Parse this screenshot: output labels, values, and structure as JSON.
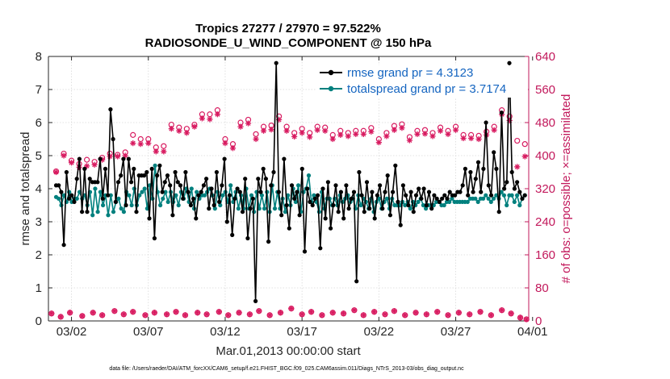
{
  "chart_data": {
    "type": "line",
    "title_line1": "Tropics 27277 / 27970 = 97.522%",
    "title_line2": "RADIOSONDE_U_WIND_COMPONENT @ 150 hPa",
    "xlabel": "Mar.01,2013 00:00:00 start",
    "ylabel_left": "rmse and totalspread",
    "ylabel_right": "# of obs: o=possible; ×=assimilated",
    "footer": "data file: /Users/raeder/DAI/ATM_forcXX/CAM6_setup/f.e21.FHIST_BGC.f09_025.CAM6assim.011/Diags_NTrS_2013-03/obs_diag_output.nc",
    "x_range": [
      0.5,
      31.75
    ],
    "ylim_left": [
      0,
      8
    ],
    "ylim_right": [
      0,
      640
    ],
    "left_ticks": [
      "0",
      "1",
      "2",
      "3",
      "4",
      "5",
      "6",
      "7",
      "8"
    ],
    "right_ticks": [
      "0",
      "80",
      "160",
      "240",
      "320",
      "400",
      "480",
      "560",
      "640"
    ],
    "x_tick_positions": [
      2,
      7,
      12,
      17,
      22,
      27,
      32
    ],
    "x_tick_labels": [
      "03/02",
      "03/07",
      "03/12",
      "03/17",
      "03/22",
      "03/27",
      "04/01"
    ],
    "colors": {
      "rmse": "#000000",
      "spread": "#00807e",
      "obs": "#d81b60",
      "legend_text": "#1565c0"
    },
    "series": [
      {
        "name": "rmse grand pr = 4.3123",
        "values": [
          4.1,
          4.1,
          3.9,
          2.3,
          4.5,
          3.7,
          3.8,
          3.6,
          4.3,
          4.9,
          3.3,
          4.6,
          3.3,
          4.3,
          4.2,
          4.2,
          4.2,
          4.9,
          3.7,
          4.6,
          3.8,
          6.4,
          5.5,
          3.6,
          4.2,
          4.4,
          4.9,
          3.5,
          4.9,
          4.2,
          4.6,
          3.3,
          4.4,
          4.4,
          4.4,
          4.5,
          3.1,
          4.6,
          2.5,
          4.4,
          4.7,
          3.9,
          4.2,
          4.4,
          4.1,
          3.2,
          4.5,
          4.2,
          4.1,
          3.7,
          4.5,
          3.9,
          3.5,
          3.7,
          3.1,
          3.8,
          3.9,
          4.1,
          4.3,
          3.4,
          4.0,
          3.5,
          4.5,
          3.6,
          4.1,
          4.9,
          3.0,
          3.8,
          2.6,
          3.7,
          4.0,
          3.9,
          3.3,
          4.3,
          2.5,
          3.4,
          3.7,
          0.6,
          4.3,
          3.9,
          4.6,
          4.3,
          2.4,
          4.1,
          4.5,
          7.8,
          3.9,
          3.2,
          4.9,
          3.5,
          2.8,
          4.1,
          3.7,
          3.9,
          3.2,
          4.6,
          2.1,
          4.0,
          3.6,
          3.5,
          3.7,
          3.8,
          2.2,
          4.0,
          3.1,
          4.2,
          2.8,
          3.5,
          4.1,
          3.3,
          3.9,
          3.1,
          4.1,
          3.4,
          3.7,
          3.9,
          1.2,
          4.5,
          3.8,
          3.3,
          4.2,
          3.4,
          3.9,
          3.1,
          3.8,
          4.1,
          3.4,
          3.9,
          4.4,
          3.2,
          3.9,
          4.7,
          3.6,
          2.9,
          4.1,
          3.8,
          3.5,
          3.9,
          3.3,
          3.8,
          4.0,
          3.7,
          4.0,
          3.5,
          3.9,
          3.4,
          3.8,
          3.7,
          3.6,
          3.7,
          3.8,
          3.7,
          3.9,
          3.8,
          3.8,
          3.9,
          3.9,
          4.1,
          4.6,
          3.8,
          4.5,
          3.9,
          4.3,
          4.8,
          3.9,
          4.6,
          6.0,
          4.1,
          3.8,
          5.1,
          4.6,
          3.3,
          6.3,
          4.0,
          4.2,
          7.8,
          4.5,
          4.0,
          4.2,
          3.9,
          3.7,
          3.8
        ]
      },
      {
        "name": "totalspread grand pr = 3.7174",
        "values": [
          3.75,
          3.7,
          3.5,
          3.8,
          3.6,
          3.9,
          3.6,
          3.7,
          3.7,
          3.9,
          3.7,
          3.8,
          3.5,
          3.9,
          3.2,
          4.0,
          3.3,
          3.9,
          3.5,
          3.8,
          3.2,
          3.8,
          3.3,
          3.6,
          3.7,
          3.4,
          3.3,
          3.9,
          3.8,
          3.5,
          4.0,
          3.5,
          3.8,
          3.9,
          4.0,
          3.4,
          4.1,
          3.7,
          4.7,
          3.9,
          3.5,
          3.7,
          3.9,
          3.6,
          3.9,
          3.6,
          3.8,
          3.5,
          3.9,
          3.7,
          4.0,
          3.6,
          4.0,
          3.4,
          3.9,
          3.7,
          3.8,
          3.8,
          3.9,
          4.0,
          3.8,
          3.4,
          3.9,
          3.5,
          3.8,
          3.9,
          3.6,
          4.1,
          3.6,
          3.9,
          3.4,
          3.8,
          3.4,
          4.0,
          3.4,
          3.8,
          3.3,
          3.9,
          3.4,
          3.8,
          3.4,
          3.9,
          3.3,
          4.1,
          3.4,
          3.9,
          3.4,
          3.7,
          3.3,
          3.8,
          3.5,
          4.0,
          3.6,
          4.1,
          3.3,
          3.9,
          4.0,
          4.4,
          3.6,
          3.8,
          3.6,
          3.3,
          3.9,
          3.4,
          3.7,
          3.7,
          3.5,
          3.7,
          3.5,
          3.8,
          3.6,
          3.7,
          3.8,
          3.6,
          3.7,
          3.4,
          3.8,
          3.5,
          3.7,
          3.6,
          3.4,
          3.7,
          3.3,
          3.6,
          3.7,
          3.4,
          3.6,
          3.7,
          3.4,
          3.7,
          3.5,
          3.5,
          3.5,
          3.6,
          3.5,
          3.6,
          3.4,
          3.6,
          3.5,
          3.6,
          3.7,
          3.5,
          3.4,
          3.5,
          3.5,
          3.5,
          3.6,
          3.6,
          3.5,
          3.5,
          3.6,
          3.6,
          3.7,
          3.6,
          3.6,
          3.6,
          3.6,
          3.6,
          3.6,
          3.7,
          3.7,
          3.7,
          3.6,
          3.7,
          3.7,
          3.8,
          3.7,
          3.6,
          3.7,
          3.8,
          3.7,
          3.9,
          3.8,
          3.5,
          3.8,
          3.8,
          3.6,
          3.8,
          3.5,
          3.7,
          3.8
        ]
      }
    ],
    "obs_possible": [
      {
        "x": 1.0,
        "y": 362
      },
      {
        "x": 1.5,
        "y": 405
      },
      {
        "x": 2.0,
        "y": 388
      },
      {
        "x": 2.5,
        "y": 380
      },
      {
        "x": 3.0,
        "y": 390
      },
      {
        "x": 3.5,
        "y": 385
      },
      {
        "x": 4.0,
        "y": 395
      },
      {
        "x": 4.5,
        "y": 405
      },
      {
        "x": 5.0,
        "y": 402
      },
      {
        "x": 5.5,
        "y": 408
      },
      {
        "x": 6.0,
        "y": 450
      },
      {
        "x": 6.5,
        "y": 440
      },
      {
        "x": 7.0,
        "y": 440
      },
      {
        "x": 7.5,
        "y": 420
      },
      {
        "x": 8.0,
        "y": 423
      },
      {
        "x": 8.5,
        "y": 475
      },
      {
        "x": 9.0,
        "y": 468
      },
      {
        "x": 9.5,
        "y": 465
      },
      {
        "x": 10.0,
        "y": 475
      },
      {
        "x": 10.5,
        "y": 500
      },
      {
        "x": 11.0,
        "y": 500
      },
      {
        "x": 11.5,
        "y": 510
      },
      {
        "x": 12.0,
        "y": 440
      },
      {
        "x": 12.5,
        "y": 428
      },
      {
        "x": 13.0,
        "y": 480
      },
      {
        "x": 13.5,
        "y": 487
      },
      {
        "x": 14.0,
        "y": 452
      },
      {
        "x": 14.5,
        "y": 470
      },
      {
        "x": 15.0,
        "y": 473
      },
      {
        "x": 15.5,
        "y": 495
      },
      {
        "x": 16.0,
        "y": 470
      },
      {
        "x": 16.5,
        "y": 455
      },
      {
        "x": 17.0,
        "y": 465
      },
      {
        "x": 17.5,
        "y": 455
      },
      {
        "x": 18.0,
        "y": 470
      },
      {
        "x": 18.5,
        "y": 468
      },
      {
        "x": 19.0,
        "y": 450
      },
      {
        "x": 19.5,
        "y": 460
      },
      {
        "x": 20.0,
        "y": 455
      },
      {
        "x": 20.5,
        "y": 460
      },
      {
        "x": 21.0,
        "y": 460
      },
      {
        "x": 21.5,
        "y": 467
      },
      {
        "x": 22.0,
        "y": 440
      },
      {
        "x": 22.5,
        "y": 455
      },
      {
        "x": 23.0,
        "y": 472
      },
      {
        "x": 23.5,
        "y": 476
      },
      {
        "x": 24.0,
        "y": 445
      },
      {
        "x": 24.5,
        "y": 460
      },
      {
        "x": 25.0,
        "y": 462
      },
      {
        "x": 25.5,
        "y": 455
      },
      {
        "x": 26.0,
        "y": 468
      },
      {
        "x": 26.5,
        "y": 460
      },
      {
        "x": 27.0,
        "y": 470
      },
      {
        "x": 27.5,
        "y": 450
      },
      {
        "x": 28.0,
        "y": 450
      },
      {
        "x": 28.5,
        "y": 448
      },
      {
        "x": 29.0,
        "y": 458
      },
      {
        "x": 29.5,
        "y": 470
      },
      {
        "x": 30.0,
        "y": 510
      },
      {
        "x": 30.5,
        "y": 495
      },
      {
        "x": 31.0,
        "y": 436
      },
      {
        "x": 31.5,
        "y": 428
      }
    ],
    "obs_assimilated": [
      {
        "x": 1.0,
        "y": 360
      },
      {
        "x": 1.5,
        "y": 400
      },
      {
        "x": 2.0,
        "y": 383
      },
      {
        "x": 2.5,
        "y": 372
      },
      {
        "x": 3.0,
        "y": 375
      },
      {
        "x": 3.5,
        "y": 378
      },
      {
        "x": 4.0,
        "y": 390
      },
      {
        "x": 4.5,
        "y": 398
      },
      {
        "x": 5.0,
        "y": 398
      },
      {
        "x": 5.5,
        "y": 400
      },
      {
        "x": 6.0,
        "y": 430
      },
      {
        "x": 6.5,
        "y": 428
      },
      {
        "x": 7.0,
        "y": 430
      },
      {
        "x": 7.5,
        "y": 410
      },
      {
        "x": 8.0,
        "y": 410
      },
      {
        "x": 8.5,
        "y": 465
      },
      {
        "x": 9.0,
        "y": 460
      },
      {
        "x": 9.5,
        "y": 455
      },
      {
        "x": 10.0,
        "y": 470
      },
      {
        "x": 10.5,
        "y": 490
      },
      {
        "x": 11.0,
        "y": 488
      },
      {
        "x": 11.5,
        "y": 500
      },
      {
        "x": 12.0,
        "y": 430
      },
      {
        "x": 12.5,
        "y": 418
      },
      {
        "x": 13.0,
        "y": 470
      },
      {
        "x": 13.5,
        "y": 478
      },
      {
        "x": 14.0,
        "y": 440
      },
      {
        "x": 14.5,
        "y": 460
      },
      {
        "x": 15.0,
        "y": 463
      },
      {
        "x": 15.5,
        "y": 487
      },
      {
        "x": 16.0,
        "y": 460
      },
      {
        "x": 16.5,
        "y": 446
      },
      {
        "x": 17.0,
        "y": 455
      },
      {
        "x": 17.5,
        "y": 445
      },
      {
        "x": 18.0,
        "y": 462
      },
      {
        "x": 18.5,
        "y": 460
      },
      {
        "x": 19.0,
        "y": 440
      },
      {
        "x": 19.5,
        "y": 450
      },
      {
        "x": 20.0,
        "y": 447
      },
      {
        "x": 20.5,
        "y": 452
      },
      {
        "x": 21.0,
        "y": 452
      },
      {
        "x": 21.5,
        "y": 458
      },
      {
        "x": 22.0,
        "y": 432
      },
      {
        "x": 22.5,
        "y": 447
      },
      {
        "x": 23.0,
        "y": 462
      },
      {
        "x": 23.5,
        "y": 467
      },
      {
        "x": 24.0,
        "y": 437
      },
      {
        "x": 24.5,
        "y": 452
      },
      {
        "x": 25.0,
        "y": 453
      },
      {
        "x": 25.5,
        "y": 447
      },
      {
        "x": 26.0,
        "y": 460
      },
      {
        "x": 26.5,
        "y": 452
      },
      {
        "x": 27.0,
        "y": 462
      },
      {
        "x": 27.5,
        "y": 442
      },
      {
        "x": 28.0,
        "y": 442
      },
      {
        "x": 28.5,
        "y": 440
      },
      {
        "x": 29.0,
        "y": 450
      },
      {
        "x": 29.5,
        "y": 462
      },
      {
        "x": 30.0,
        "y": 500
      },
      {
        "x": 30.5,
        "y": 485
      },
      {
        "x": 31.0,
        "y": 373
      },
      {
        "x": 31.5,
        "y": 398
      }
    ],
    "obs_bottom_possible": [
      {
        "x": 0.7,
        "y": 18
      },
      {
        "x": 1.3,
        "y": 10
      },
      {
        "x": 1.9,
        "y": 20
      },
      {
        "x": 2.7,
        "y": 12
      },
      {
        "x": 3.4,
        "y": 20
      },
      {
        "x": 4.0,
        "y": 14
      },
      {
        "x": 4.8,
        "y": 24
      },
      {
        "x": 5.4,
        "y": 16
      },
      {
        "x": 6.0,
        "y": 22
      },
      {
        "x": 6.8,
        "y": 14
      },
      {
        "x": 7.4,
        "y": 20
      },
      {
        "x": 8.2,
        "y": 16
      },
      {
        "x": 8.8,
        "y": 22
      },
      {
        "x": 9.4,
        "y": 14
      },
      {
        "x": 10.2,
        "y": 20
      },
      {
        "x": 10.8,
        "y": 16
      },
      {
        "x": 11.6,
        "y": 22
      },
      {
        "x": 12.2,
        "y": 14
      },
      {
        "x": 12.9,
        "y": 20
      },
      {
        "x": 13.6,
        "y": 16
      },
      {
        "x": 14.2,
        "y": 24
      },
      {
        "x": 14.9,
        "y": 14
      },
      {
        "x": 15.6,
        "y": 20
      },
      {
        "x": 16.3,
        "y": 30
      },
      {
        "x": 17.0,
        "y": 16
      },
      {
        "x": 17.6,
        "y": 22
      },
      {
        "x": 18.3,
        "y": 14
      },
      {
        "x": 19.0,
        "y": 20
      },
      {
        "x": 19.7,
        "y": 18
      },
      {
        "x": 20.4,
        "y": 26
      },
      {
        "x": 21.0,
        "y": 14
      },
      {
        "x": 21.7,
        "y": 22
      },
      {
        "x": 22.4,
        "y": 16
      },
      {
        "x": 23.0,
        "y": 24
      },
      {
        "x": 23.7,
        "y": 14
      },
      {
        "x": 24.4,
        "y": 20
      },
      {
        "x": 25.1,
        "y": 16
      },
      {
        "x": 25.8,
        "y": 22
      },
      {
        "x": 26.5,
        "y": 14
      },
      {
        "x": 27.2,
        "y": 20
      },
      {
        "x": 27.9,
        "y": 16
      },
      {
        "x": 28.6,
        "y": 22
      },
      {
        "x": 29.3,
        "y": 14
      },
      {
        "x": 30.0,
        "y": 26
      },
      {
        "x": 30.6,
        "y": 18
      },
      {
        "x": 31.2,
        "y": 8
      },
      {
        "x": 31.6,
        "y": 4
      }
    ]
  }
}
